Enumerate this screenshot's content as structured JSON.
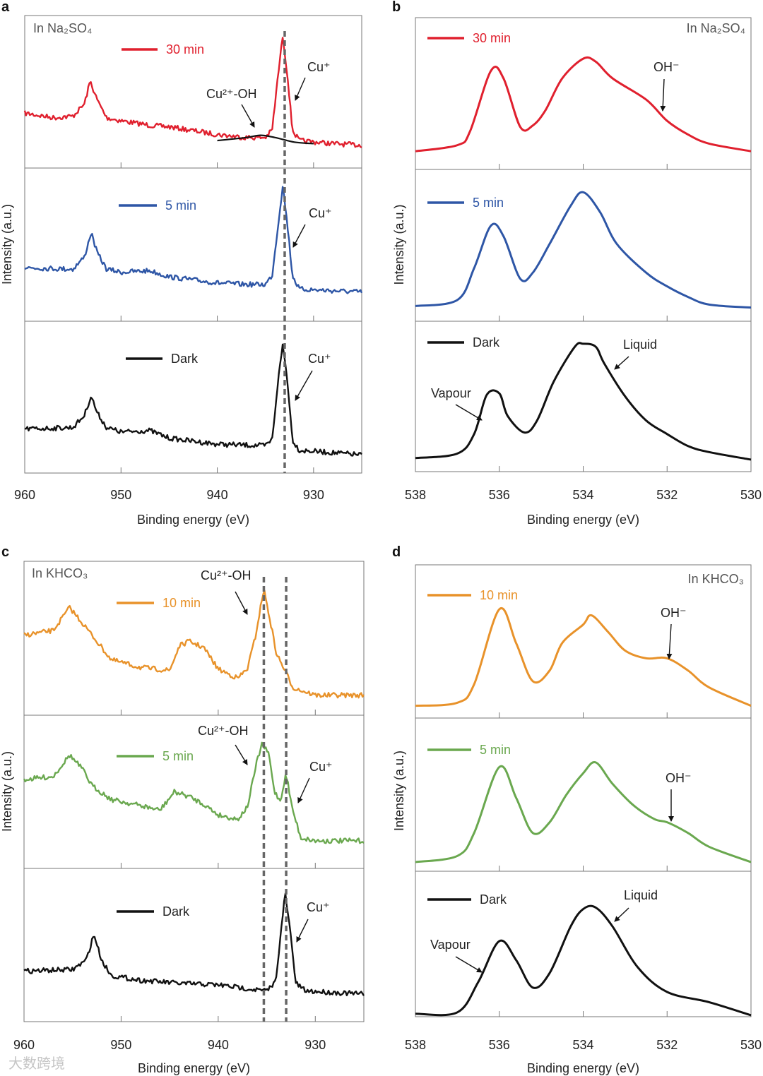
{
  "watermark": "大数跨境",
  "chart_data": [
    {
      "panel": "a",
      "type": "line",
      "xlabel": "Binding energy (eV)",
      "ylabel": "Intensity (a.u.)",
      "xlim": [
        960,
        925
      ],
      "xticks": [
        960,
        950,
        940,
        930
      ],
      "reference_lines": [
        933
      ],
      "noisy": true,
      "condition_label": "In Na₂SO₄",
      "subplots": [
        {
          "legend": "30 min",
          "color": "#e0202e",
          "points": [
            [
              960,
              0.36
            ],
            [
              957,
              0.33
            ],
            [
              955,
              0.34
            ],
            [
              953.8,
              0.42
            ],
            [
              953.2,
              0.57
            ],
            [
              952.5,
              0.45
            ],
            [
              951.5,
              0.33
            ],
            [
              950,
              0.31
            ],
            [
              947,
              0.28
            ],
            [
              945,
              0.27
            ],
            [
              942,
              0.24
            ],
            [
              940,
              0.22
            ],
            [
              937,
              0.2
            ],
            [
              935,
              0.2
            ],
            [
              934.3,
              0.25
            ],
            [
              933.7,
              0.6
            ],
            [
              933.2,
              0.87
            ],
            [
              932.7,
              0.6
            ],
            [
              932.2,
              0.25
            ],
            [
              931.5,
              0.18
            ],
            [
              928,
              0.16
            ],
            [
              925,
              0.15
            ]
          ],
          "fit": [
            [
              940,
              0.18
            ],
            [
              937,
              0.2
            ],
            [
              935.5,
              0.215
            ],
            [
              934,
              0.2
            ],
            [
              932,
              0.17
            ],
            [
              930,
              0.16
            ]
          ],
          "annotations": [
            {
              "text": "Cu⁺"
            },
            {
              "text": "Cu²⁺-OH"
            }
          ]
        },
        {
          "legend": "5 min",
          "color": "#2e56a6",
          "points": [
            [
              960,
              0.35
            ],
            [
              955,
              0.34
            ],
            [
              953.8,
              0.42
            ],
            [
              953.1,
              0.58
            ],
            [
              952.5,
              0.45
            ],
            [
              951.5,
              0.34
            ],
            [
              950,
              0.32
            ],
            [
              947,
              0.33
            ],
            [
              945,
              0.29
            ],
            [
              940,
              0.25
            ],
            [
              937,
              0.24
            ],
            [
              935,
              0.24
            ],
            [
              934.3,
              0.3
            ],
            [
              933.7,
              0.62
            ],
            [
              933.2,
              0.89
            ],
            [
              932.7,
              0.62
            ],
            [
              932.2,
              0.3
            ],
            [
              931.5,
              0.21
            ],
            [
              925,
              0.19
            ]
          ],
          "annotations": [
            {
              "text": "Cu⁺"
            }
          ]
        },
        {
          "legend": "Dark",
          "color": "#111111",
          "points": [
            [
              960,
              0.29
            ],
            [
              955,
              0.3
            ],
            [
              953.8,
              0.38
            ],
            [
              953.1,
              0.51
            ],
            [
              952.5,
              0.4
            ],
            [
              951.5,
              0.3
            ],
            [
              950,
              0.27
            ],
            [
              947,
              0.28
            ],
            [
              945,
              0.23
            ],
            [
              940,
              0.19
            ],
            [
              935,
              0.18
            ],
            [
              934.3,
              0.22
            ],
            [
              933.7,
              0.6
            ],
            [
              933.2,
              0.85
            ],
            [
              932.7,
              0.6
            ],
            [
              932.2,
              0.22
            ],
            [
              931.5,
              0.15
            ],
            [
              925,
              0.12
            ]
          ],
          "annotations": [
            {
              "text": "Cu⁺"
            }
          ]
        }
      ]
    },
    {
      "panel": "b",
      "type": "line",
      "xlabel": "Binding energy (eV)",
      "ylabel": "Intensity (a.u.)",
      "xlim": [
        538,
        530
      ],
      "xticks": [
        538,
        536,
        534,
        532,
        530
      ],
      "reference_lines": [],
      "noisy": false,
      "condition_label": "In Na₂SO₄",
      "subplots": [
        {
          "legend": "30 min",
          "color": "#e0202e",
          "points": [
            [
              538,
              0.12
            ],
            [
              537,
              0.16
            ],
            [
              536.7,
              0.25
            ],
            [
              536.2,
              0.65
            ],
            [
              535.9,
              0.6
            ],
            [
              535.5,
              0.28
            ],
            [
              535.2,
              0.29
            ],
            [
              534.9,
              0.39
            ],
            [
              534.5,
              0.6
            ],
            [
              534,
              0.73
            ],
            [
              533.7,
              0.71
            ],
            [
              533.3,
              0.6
            ],
            [
              532.5,
              0.46
            ],
            [
              532,
              0.32
            ],
            [
              531.5,
              0.23
            ],
            [
              531,
              0.17
            ],
            [
              530,
              0.12
            ]
          ],
          "annotations": [
            {
              "text": "OH⁻"
            }
          ]
        },
        {
          "legend": "5 min",
          "color": "#2e56a6",
          "points": [
            [
              538,
              0.1
            ],
            [
              537,
              0.14
            ],
            [
              536.6,
              0.35
            ],
            [
              536.2,
              0.63
            ],
            [
              535.9,
              0.56
            ],
            [
              535.5,
              0.28
            ],
            [
              535.2,
              0.32
            ],
            [
              534.8,
              0.51
            ],
            [
              534.3,
              0.76
            ],
            [
              534,
              0.85
            ],
            [
              533.6,
              0.72
            ],
            [
              533.2,
              0.51
            ],
            [
              532.5,
              0.32
            ],
            [
              532,
              0.23
            ],
            [
              531.5,
              0.16
            ],
            [
              531,
              0.11
            ],
            [
              530,
              0.09
            ]
          ],
          "annotations": []
        },
        {
          "legend": "Dark",
          "color": "#111111",
          "points": [
            [
              538,
              0.09
            ],
            [
              537,
              0.12
            ],
            [
              536.6,
              0.25
            ],
            [
              536.3,
              0.51
            ],
            [
              536,
              0.52
            ],
            [
              535.8,
              0.37
            ],
            [
              535.4,
              0.26
            ],
            [
              535.1,
              0.34
            ],
            [
              534.7,
              0.6
            ],
            [
              534.2,
              0.83
            ],
            [
              534,
              0.85
            ],
            [
              533.7,
              0.83
            ],
            [
              533.5,
              0.72
            ],
            [
              533,
              0.5
            ],
            [
              532.5,
              0.34
            ],
            [
              532,
              0.25
            ],
            [
              531.5,
              0.17
            ],
            [
              531,
              0.13
            ],
            [
              530,
              0.08
            ]
          ],
          "annotations": [
            {
              "text": "Liquid"
            },
            {
              "text": "Vapour"
            }
          ]
        }
      ]
    },
    {
      "panel": "c",
      "type": "line",
      "xlabel": "Binding energy (eV)",
      "ylabel": "Intensity (a.u.)",
      "xlim": [
        960,
        925
      ],
      "xticks": [
        960,
        950,
        940,
        930
      ],
      "reference_lines": [
        935.3,
        933
      ],
      "noisy": true,
      "condition_label": "In KHCO₃",
      "subplots": [
        {
          "legend": "10 min",
          "color": "#e8922a",
          "points": [
            [
              960,
              0.52
            ],
            [
              957,
              0.55
            ],
            [
              955.3,
              0.7
            ],
            [
              954,
              0.6
            ],
            [
              952.5,
              0.48
            ],
            [
              951,
              0.36
            ],
            [
              948,
              0.31
            ],
            [
              945,
              0.29
            ],
            [
              944,
              0.45
            ],
            [
              943,
              0.48
            ],
            [
              941.5,
              0.44
            ],
            [
              940,
              0.3
            ],
            [
              938,
              0.24
            ],
            [
              937,
              0.3
            ],
            [
              936.2,
              0.5
            ],
            [
              935.3,
              0.82
            ],
            [
              934.6,
              0.6
            ],
            [
              934,
              0.4
            ],
            [
              933.2,
              0.3
            ],
            [
              932.3,
              0.18
            ],
            [
              930,
              0.13
            ],
            [
              925,
              0.13
            ]
          ],
          "annotations": [
            {
              "text": "Cu²⁺-OH"
            }
          ]
        },
        {
          "legend": "5 min",
          "color": "#6aa84f",
          "points": [
            [
              960,
              0.58
            ],
            [
              957,
              0.6
            ],
            [
              955.3,
              0.74
            ],
            [
              954,
              0.65
            ],
            [
              953,
              0.54
            ],
            [
              951,
              0.45
            ],
            [
              948,
              0.41
            ],
            [
              946,
              0.38
            ],
            [
              944.5,
              0.5
            ],
            [
              943,
              0.47
            ],
            [
              941.5,
              0.42
            ],
            [
              940,
              0.35
            ],
            [
              938,
              0.32
            ],
            [
              937,
              0.4
            ],
            [
              936,
              0.7
            ],
            [
              935.5,
              0.81
            ],
            [
              934.8,
              0.75
            ],
            [
              934.2,
              0.5
            ],
            [
              933.6,
              0.44
            ],
            [
              933,
              0.62
            ],
            [
              932.4,
              0.4
            ],
            [
              931.5,
              0.2
            ],
            [
              930,
              0.18
            ],
            [
              925,
              0.18
            ]
          ],
          "annotations": [
            {
              "text": "Cu²⁺-OH"
            },
            {
              "text": "Cu⁺"
            }
          ]
        },
        {
          "legend": "Dark",
          "color": "#111111",
          "points": [
            [
              960,
              0.33
            ],
            [
              955,
              0.34
            ],
            [
              953.6,
              0.4
            ],
            [
              952.8,
              0.57
            ],
            [
              952,
              0.4
            ],
            [
              951,
              0.3
            ],
            [
              948,
              0.27
            ],
            [
              944,
              0.25
            ],
            [
              940,
              0.24
            ],
            [
              935,
              0.2
            ],
            [
              934.1,
              0.26
            ],
            [
              933.5,
              0.6
            ],
            [
              933.1,
              0.84
            ],
            [
              932.6,
              0.6
            ],
            [
              932,
              0.25
            ],
            [
              931,
              0.2
            ],
            [
              925,
              0.18
            ]
          ],
          "annotations": [
            {
              "text": "Cu⁺"
            }
          ]
        }
      ]
    },
    {
      "panel": "d",
      "type": "line",
      "xlabel": "Binding energy (eV)",
      "ylabel": "Intensity (a.u.)",
      "xlim": [
        538,
        530
      ],
      "xticks": [
        538,
        536,
        534,
        532,
        530
      ],
      "reference_lines": [],
      "noisy": false,
      "condition_label": "In KHCO₃",
      "subplots": [
        {
          "legend": "10 min",
          "color": "#e8922a",
          "points": [
            [
              538,
              0.08
            ],
            [
              537,
              0.1
            ],
            [
              536.6,
              0.22
            ],
            [
              536,
              0.71
            ],
            [
              535.6,
              0.49
            ],
            [
              535.2,
              0.24
            ],
            [
              534.8,
              0.31
            ],
            [
              534.5,
              0.49
            ],
            [
              534,
              0.61
            ],
            [
              533.8,
              0.67
            ],
            [
              533.4,
              0.56
            ],
            [
              533,
              0.44
            ],
            [
              532.5,
              0.39
            ],
            [
              532,
              0.39
            ],
            [
              531.5,
              0.31
            ],
            [
              531,
              0.2
            ],
            [
              530,
              0.08
            ]
          ],
          "annotations": [
            {
              "text": "OH⁻"
            }
          ]
        },
        {
          "legend": "5 min",
          "color": "#6aa84f",
          "points": [
            [
              538,
              0.06
            ],
            [
              537,
              0.1
            ],
            [
              536.6,
              0.25
            ],
            [
              536,
              0.68
            ],
            [
              535.6,
              0.48
            ],
            [
              535.2,
              0.25
            ],
            [
              534.8,
              0.32
            ],
            [
              534.4,
              0.5
            ],
            [
              534,
              0.64
            ],
            [
              533.7,
              0.71
            ],
            [
              533.3,
              0.57
            ],
            [
              532.8,
              0.43
            ],
            [
              532.3,
              0.34
            ],
            [
              532,
              0.32
            ],
            [
              531.5,
              0.25
            ],
            [
              531,
              0.16
            ],
            [
              530,
              0.06
            ]
          ],
          "annotations": [
            {
              "text": "OH⁻"
            }
          ]
        },
        {
          "legend": "Dark",
          "color": "#111111",
          "points": [
            [
              538,
              0.02
            ],
            [
              537,
              0.03
            ],
            [
              536.5,
              0.24
            ],
            [
              536,
              0.52
            ],
            [
              535.6,
              0.39
            ],
            [
              535.2,
              0.2
            ],
            [
              534.8,
              0.3
            ],
            [
              534.3,
              0.62
            ],
            [
              534,
              0.74
            ],
            [
              533.7,
              0.75
            ],
            [
              533.3,
              0.62
            ],
            [
              532.7,
              0.34
            ],
            [
              532,
              0.17
            ],
            [
              531,
              0.1
            ],
            [
              530,
              0.01
            ]
          ],
          "annotations": [
            {
              "text": "Liquid"
            },
            {
              "text": "Vapour"
            }
          ]
        }
      ]
    }
  ]
}
